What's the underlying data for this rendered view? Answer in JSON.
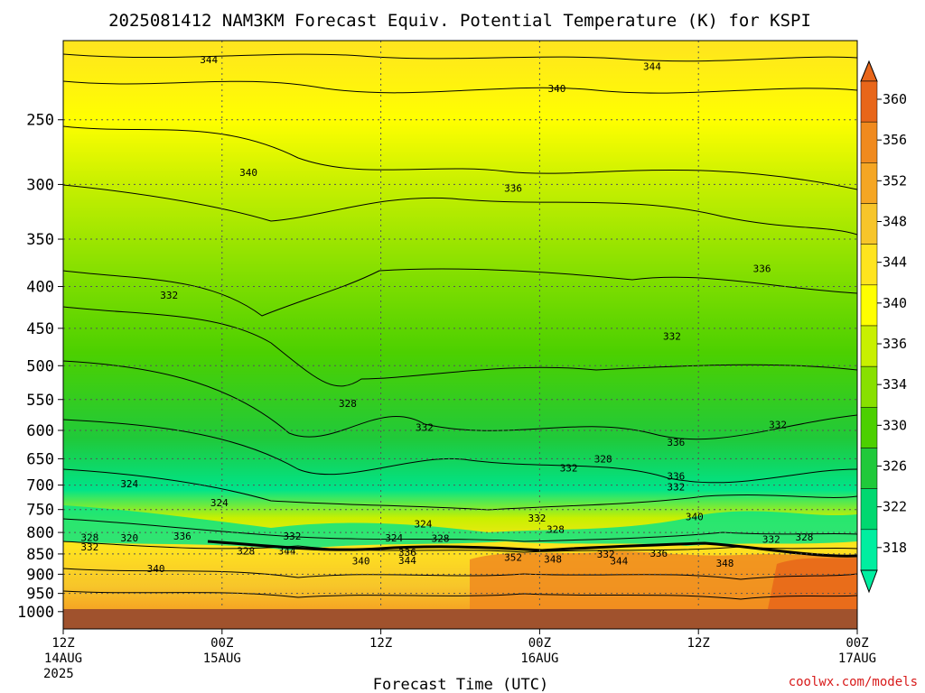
{
  "chart_data": {
    "type": "heatmap",
    "title": "2025081412 NAM3KM Forecast Equiv. Potential Temperature (K) for KSPI",
    "xlabel": "Forecast Time (UTC)",
    "ylabel": "",
    "x_ticks": [
      {
        "line1": "12Z",
        "line2": "14AUG",
        "line3": "2025",
        "hour": 0
      },
      {
        "line1": "00Z",
        "line2": "15AUG",
        "line3": "",
        "hour": 12
      },
      {
        "line1": "12Z",
        "line2": "",
        "line3": "",
        "hour": 24
      },
      {
        "line1": "00Z",
        "line2": "16AUG",
        "line3": "",
        "hour": 36
      },
      {
        "line1": "12Z",
        "line2": "",
        "line3": "",
        "hour": 48
      },
      {
        "line1": "00Z",
        "line2": "17AUG",
        "line3": "",
        "hour": 60
      }
    ],
    "xlim": [
      0,
      60
    ],
    "y_ticks": [
      250,
      300,
      350,
      400,
      450,
      500,
      550,
      600,
      650,
      700,
      750,
      800,
      850,
      900,
      950,
      1000
    ],
    "ylim": [
      200,
      1050
    ],
    "y_scale": "log",
    "colorbar": {
      "labels": [
        360,
        356,
        352,
        348,
        344,
        340,
        336,
        334,
        330,
        326,
        322,
        318
      ],
      "colors": [
        "#e8661a",
        "#f08a1e",
        "#f5a623",
        "#f7c52a",
        "#ffe41f",
        "#ffff00",
        "#c8f000",
        "#88e000",
        "#4cd000",
        "#20c93a",
        "#00d870",
        "#00eea0"
      ]
    },
    "contour_labels": [
      {
        "text": "344",
        "hour": 11.0,
        "p": 211
      },
      {
        "text": "344",
        "hour": 44.5,
        "p": 215
      },
      {
        "text": "340",
        "hour": 37.3,
        "p": 229
      },
      {
        "text": "340",
        "hour": 14.0,
        "p": 290
      },
      {
        "text": "336",
        "hour": 34.0,
        "p": 303
      },
      {
        "text": "336",
        "hour": 52.8,
        "p": 380
      },
      {
        "text": "332",
        "hour": 8.0,
        "p": 410
      },
      {
        "text": "332",
        "hour": 46.0,
        "p": 460
      },
      {
        "text": "328",
        "hour": 21.5,
        "p": 556
      },
      {
        "text": "332",
        "hour": 27.3,
        "p": 595
      },
      {
        "text": "332",
        "hour": 54.0,
        "p": 590
      },
      {
        "text": "336",
        "hour": 46.3,
        "p": 620
      },
      {
        "text": "328",
        "hour": 40.8,
        "p": 650
      },
      {
        "text": "332",
        "hour": 38.2,
        "p": 667
      },
      {
        "text": "324",
        "hour": 5.0,
        "p": 697
      },
      {
        "text": "336",
        "hour": 46.3,
        "p": 682
      },
      {
        "text": "332",
        "hour": 46.3,
        "p": 703
      },
      {
        "text": "324",
        "hour": 11.8,
        "p": 735
      },
      {
        "text": "332",
        "hour": 35.8,
        "p": 768
      },
      {
        "text": "340",
        "hour": 47.7,
        "p": 765
      },
      {
        "text": "324",
        "hour": 27.2,
        "p": 781
      },
      {
        "text": "328",
        "hour": 37.2,
        "p": 793
      },
      {
        "text": "328",
        "hour": 2.0,
        "p": 811
      },
      {
        "text": "320",
        "hour": 5.0,
        "p": 812
      },
      {
        "text": "336",
        "hour": 9.0,
        "p": 808
      },
      {
        "text": "332",
        "hour": 17.3,
        "p": 808
      },
      {
        "text": "324",
        "hour": 25.0,
        "p": 812
      },
      {
        "text": "328",
        "hour": 28.5,
        "p": 813
      },
      {
        "text": "332",
        "hour": 53.5,
        "p": 815
      },
      {
        "text": "328",
        "hour": 56.0,
        "p": 810
      },
      {
        "text": "332",
        "hour": 2.0,
        "p": 833
      },
      {
        "text": "328",
        "hour": 13.8,
        "p": 843
      },
      {
        "text": "344",
        "hour": 16.9,
        "p": 843
      },
      {
        "text": "336",
        "hour": 26.0,
        "p": 846
      },
      {
        "text": "352",
        "hour": 34.0,
        "p": 858
      },
      {
        "text": "348",
        "hour": 37.0,
        "p": 862
      },
      {
        "text": "332",
        "hour": 41.0,
        "p": 850
      },
      {
        "text": "336",
        "hour": 45.0,
        "p": 848
      },
      {
        "text": "340",
        "hour": 22.5,
        "p": 867
      },
      {
        "text": "344",
        "hour": 26.0,
        "p": 866
      },
      {
        "text": "344",
        "hour": 42.0,
        "p": 867
      },
      {
        "text": "348",
        "hour": 50.0,
        "p": 872
      },
      {
        "text": "340",
        "hour": 7.0,
        "p": 885
      }
    ]
  },
  "footer": {
    "credit": "coolwx.com/models"
  }
}
